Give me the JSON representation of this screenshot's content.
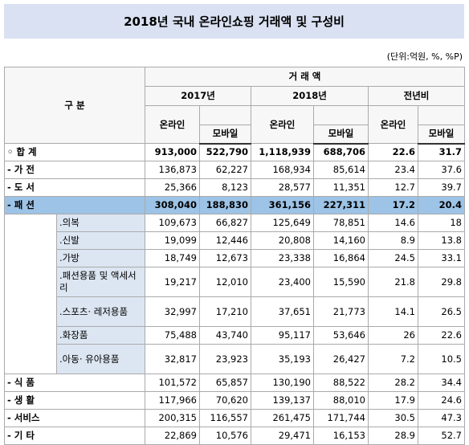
{
  "title": "2018년 국내 온라인쇼핑 거래액 및 구성비",
  "unit": "(단위:억원, %, %P)",
  "table": {
    "header": {
      "group": "구 분",
      "measure": "거 래 액",
      "columns": [
        {
          "name": "2017년",
          "sub": [
            "온라인",
            "모바일"
          ]
        },
        {
          "name": "2018년",
          "sub": [
            "온라인",
            "모바일"
          ]
        },
        {
          "name": "전년비",
          "sub": [
            "온라인",
            "모바일"
          ]
        }
      ]
    },
    "rows": [
      {
        "label": "◦ 합 계",
        "values": [
          "913,000",
          "522,790",
          "1,118,939",
          "688,706",
          "22.6",
          "31.7"
        ]
      },
      {
        "label": "- 가 전",
        "values": [
          "136,873",
          "62,227",
          "168,934",
          "85,614",
          "23.4",
          "37.6"
        ]
      },
      {
        "label": "- 도 서",
        "values": [
          "25,366",
          "8,123",
          "28,577",
          "11,351",
          "12.7",
          "39.7"
        ]
      },
      {
        "label": "- 패 션",
        "values": [
          "308,040",
          "188,830",
          "361,156",
          "227,311",
          "17.2",
          "20.4"
        ],
        "items": [
          {
            "label": ".의복",
            "values": [
              "109,673",
              "66,827",
              "125,649",
              "78,851",
              "14.6",
              "18"
            ]
          },
          {
            "label": ".신발",
            "values": [
              "19,099",
              "12,446",
              "20,808",
              "14,160",
              "8.9",
              "13.8"
            ]
          },
          {
            "label": ".가방",
            "values": [
              "18,749",
              "12,673",
              "23,338",
              "16,864",
              "24.5",
              "33.1"
            ]
          },
          {
            "label": ".패션용품 및 액세서리",
            "values": [
              "19,217",
              "12,010",
              "23,400",
              "15,590",
              "21.8",
              "29.8"
            ]
          },
          {
            "label": ".스포츠· 레저용품",
            "values": [
              "32,997",
              "17,210",
              "37,651",
              "21,773",
              "14.1",
              "26.5"
            ]
          },
          {
            "label": ".화장품",
            "values": [
              "75,488",
              "43,740",
              "95,117",
              "53,646",
              "26",
              "22.6"
            ]
          },
          {
            "label": ".아동· 유아용품",
            "values": [
              "32,817",
              "23,923",
              "35,193",
              "26,427",
              "7.2",
              "10.5"
            ]
          }
        ]
      },
      {
        "label": "- 식 품",
        "values": [
          "101,572",
          "65,857",
          "130,190",
          "88,522",
          "28.2",
          "34.4"
        ]
      },
      {
        "label": "- 생 활",
        "values": [
          "117,966",
          "70,620",
          "139,137",
          "88,010",
          "17.9",
          "24.6"
        ]
      },
      {
        "label": "- 서비스",
        "values": [
          "200,315",
          "116,557",
          "261,475",
          "171,744",
          "30.5",
          "47.3"
        ]
      },
      {
        "label": "- 기 타",
        "values": [
          "22,869",
          "10,576",
          "29,471",
          "16,153",
          "28.9",
          "52.7"
        ]
      }
    ]
  }
}
